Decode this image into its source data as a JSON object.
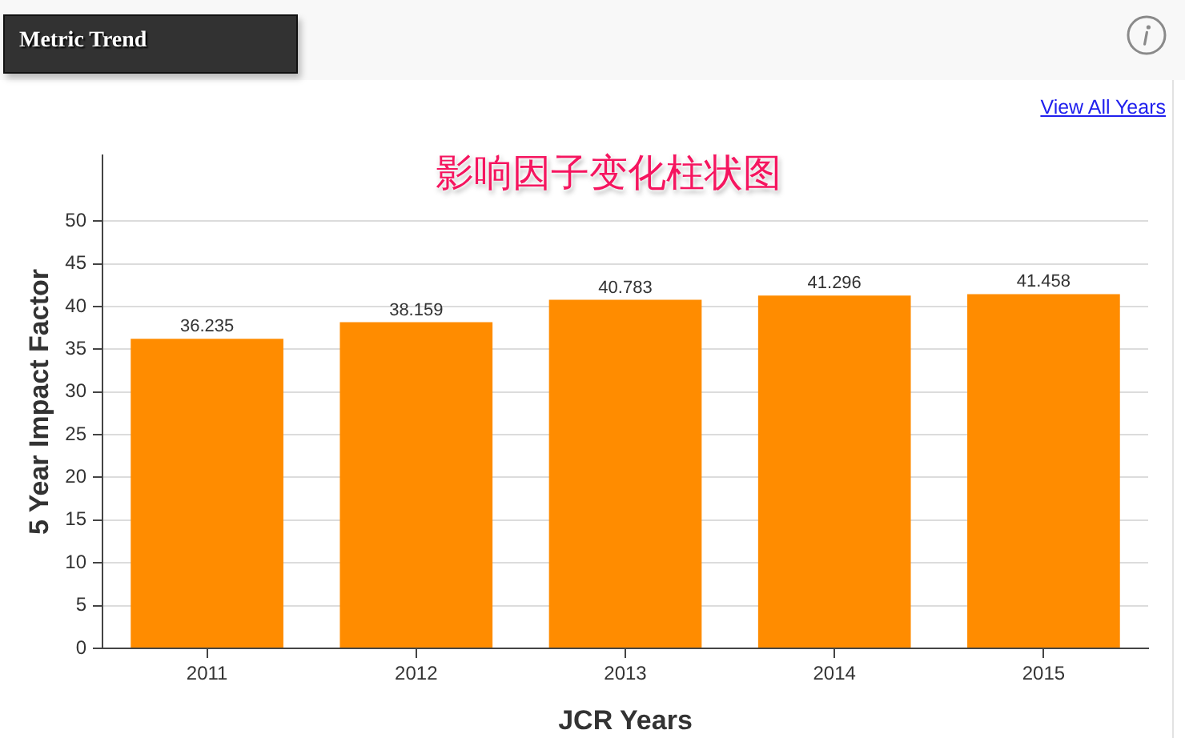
{
  "chart_data": {
    "type": "bar",
    "title": "影响因子变化柱状图",
    "xlabel": "JCR Years",
    "ylabel": "5 Year Impact Factor",
    "annotations": [
      "Metric Trend",
      "View All Years"
    ],
    "categories": [
      "2011",
      "2012",
      "2013",
      "2014",
      "2015"
    ],
    "values": [
      36.235,
      38.159,
      40.783,
      41.296,
      41.458
    ],
    "color": "#ff8c00",
    "ylim": [
      0,
      57.7
    ],
    "yticks": [
      0,
      5,
      10,
      15,
      20,
      25,
      30,
      35,
      40,
      45,
      50
    ],
    "grid": "y",
    "data_labels": true
  }
}
